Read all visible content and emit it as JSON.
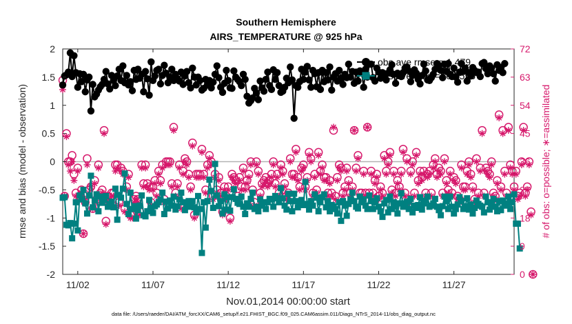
{
  "chart_data": {
    "type": "line",
    "title": "Southern Hemisphere",
    "subtitle": "AIRS_TEMPERATURE @ 925 hPa",
    "xlabel": "Nov.01,2014 00:00:00 start",
    "ylabel": "rmse and bias (model - observation)",
    "ylabel_right": "# of obs: o=possible; ∗=assimilated",
    "footer": "data file: /Users/raeder/DAI/ATM_forcXX/CAM6_setup/f.e21.FHIST_BGC.f09_025.CAM6assim.011/Diags_NTrS_2014-11/obs_diag_output.nc",
    "x_ticks": [
      "11/02",
      "11/07",
      "11/12",
      "11/17",
      "11/22",
      "11/27"
    ],
    "x_tick_days": [
      2,
      7,
      12,
      17,
      22,
      27
    ],
    "xlim_days": [
      1.0,
      31.0
    ],
    "ylim": [
      -2,
      2
    ],
    "y_ticks": [
      -2,
      -1.5,
      -1,
      -0.5,
      0,
      0.5,
      1,
      1.5,
      2
    ],
    "ylim_right": [
      0,
      72
    ],
    "y_ticks_right": [
      0,
      9,
      18,
      27,
      36,
      45,
      54,
      63,
      72
    ],
    "grid": false,
    "zero_line": true,
    "legend_position": "top-right",
    "legend": [
      {
        "label": "obs ave rmse = 1.479"
      },
      {
        "label": "obs ave bias = -0.7556"
      }
    ],
    "colors": {
      "rmse": "#000000",
      "bias": "#008080",
      "counts": "#d6186b",
      "zero": "#b3b3b3"
    },
    "step_days": 0.125,
    "series": [
      {
        "name": "rmse",
        "axis": "left",
        "values": [
          1.36,
          1.52,
          1.54,
          1.59,
          1.93,
          1.51,
          1.88,
          1.58,
          1.32,
          1.56,
          1.42,
          1.55,
          1.24,
          1.45,
          1.5,
          0.9,
          1.37,
          1.15,
          1.2,
          1.27,
          1.33,
          1.37,
          1.46,
          1.6,
          1.38,
          1.29,
          1.53,
          1.44,
          1.35,
          1.52,
          1.64,
          1.44,
          1.7,
          1.4,
          1.53,
          1.36,
          1.42,
          1.26,
          1.62,
          1.46,
          1.64,
          1.48,
          1.55,
          1.24,
          1.6,
          1.47,
          1.18,
          1.77,
          1.44,
          1.52,
          1.62,
          1.64,
          1.38,
          1.53,
          1.71,
          1.57,
          1.4,
          1.5,
          1.64,
          1.44,
          1.55,
          1.47,
          1.43,
          1.59,
          1.37,
          1.52,
          1.6,
          1.4,
          1.31,
          1.66,
          1.5,
          1.36,
          1.5,
          1.44,
          1.27,
          1.3,
          1.46,
          1.36,
          1.44,
          1.31,
          1.41,
          1.55,
          1.7,
          1.49,
          1.32,
          1.23,
          1.39,
          1.62,
          1.44,
          1.31,
          1.3,
          1.61,
          1.5,
          1.46,
          1.42,
          1.35,
          1.55,
          1.46,
          1.16,
          1.04,
          1.08,
          1.13,
          1.3,
          1.22,
          1.1,
          1.43,
          1.31,
          1.25,
          1.46,
          1.59,
          1.35,
          1.28,
          1.63,
          1.46,
          1.58,
          1.35,
          1.23,
          1.25,
          1.32,
          1.48,
          1.4,
          1.68,
          1.45,
          0.77,
          1.35,
          1.32,
          1.42,
          1.64,
          1.46,
          1.59,
          1.69,
          1.45,
          1.32,
          1.62,
          1.56,
          1.33,
          1.58,
          1.28,
          1.62,
          1.42,
          1.58,
          1.45,
          1.68,
          1.27,
          1.5,
          1.56,
          1.43,
          1.62,
          1.48,
          1.37,
          1.55,
          1.49,
          1.73,
          1.5,
          1.6,
          1.39,
          1.59,
          1.43,
          1.61,
          1.57,
          1.32,
          1.64,
          1.5,
          1.73,
          1.73,
          1.49,
          1.43,
          1.66,
          1.59,
          1.48,
          1.58,
          1.56,
          1.45,
          1.57,
          1.63,
          1.72,
          1.55,
          1.39,
          1.57,
          1.53,
          1.51,
          1.58,
          1.66,
          1.68,
          1.61,
          1.42,
          1.53,
          1.63,
          1.57,
          1.46,
          1.38,
          1.53,
          1.73,
          1.61,
          1.45,
          1.44,
          1.49,
          1.55,
          1.64,
          1.74,
          1.71,
          1.62,
          1.49,
          1.73,
          1.6,
          1.74,
          1.55,
          1.51,
          1.66,
          1.5,
          1.41,
          1.59,
          1.74,
          1.6,
          1.66,
          1.43,
          1.58,
          1.52,
          1.67,
          1.62,
          1.58,
          1.59,
          1.51,
          1.74,
          1.76,
          1.65,
          1.56,
          1.7,
          1.66,
          1.56,
          1.43,
          1.72,
          1.62,
          1.67,
          1.58,
          1.74
        ]
      },
      {
        "name": "bias",
        "axis": "left",
        "values": [
          -0.64,
          -0.63,
          -1.12,
          -1.13,
          -1.09,
          -1.36,
          -1.1,
          -0.72,
          -1.22,
          -0.6,
          -0.67,
          -0.5,
          -0.74,
          -0.92,
          -0.6,
          -0.25,
          -0.81,
          -0.69,
          -0.58,
          -0.88,
          -0.62,
          -0.73,
          -0.68,
          -0.61,
          -0.8,
          -0.75,
          -0.71,
          -0.81,
          -0.48,
          -1.03,
          -0.59,
          -0.64,
          -0.48,
          -0.21,
          -0.75,
          -0.93,
          -0.55,
          -0.84,
          -0.79,
          -1.01,
          -0.86,
          -0.78,
          -0.6,
          -0.95,
          -0.97,
          -0.88,
          -0.68,
          -0.82,
          -0.91,
          -0.79,
          -0.76,
          -0.72,
          -0.67,
          -0.55,
          -0.93,
          -0.71,
          -0.83,
          -0.69,
          -0.78,
          -0.62,
          -0.85,
          -0.79,
          -0.67,
          -0.55,
          -0.72,
          -0.86,
          -0.76,
          -0.7,
          -0.8,
          -0.7,
          -0.81,
          -0.9,
          -0.61,
          -0.84,
          -1.62,
          -0.72,
          -1.17,
          -0.7,
          -0.32,
          -0.52,
          -0.82,
          -0.04,
          -0.6,
          -0.79,
          -0.7,
          -0.92,
          -0.58,
          -0.85,
          -0.63,
          -0.87,
          -0.63,
          -0.49,
          -0.66,
          -0.73,
          -0.75,
          -0.62,
          -0.8,
          -0.93,
          -0.74,
          -0.8,
          -0.66,
          -0.55,
          -0.84,
          -0.8,
          -0.88,
          -0.67,
          -0.78,
          -0.72,
          -0.84,
          -0.72,
          -0.66,
          -0.67,
          -0.8,
          -0.61,
          -0.65,
          -0.72,
          -0.47,
          -0.65,
          -0.78,
          -0.85,
          -0.57,
          -0.7,
          -0.88,
          -0.57,
          -0.7,
          -0.81,
          -0.71,
          -0.68,
          -0.77,
          -0.36,
          -0.75,
          -0.85,
          -0.7,
          -0.78,
          -0.58,
          -0.64,
          -0.88,
          -0.72,
          -0.63,
          -0.58,
          -0.81,
          -0.7,
          -0.88,
          -0.77,
          -0.79,
          -0.84,
          -0.92,
          -0.72,
          -1.05,
          -0.7,
          -0.78,
          -0.96,
          -0.75,
          -0.67,
          -0.55,
          -0.7,
          -0.8,
          -0.83,
          -0.62,
          -0.72,
          -0.67,
          -0.78,
          -0.84,
          -0.6,
          -0.7,
          -0.84,
          -0.72,
          -0.65,
          -0.8,
          -0.88,
          -0.98,
          -0.74,
          -0.68,
          -0.9,
          -0.62,
          -0.84,
          -0.72,
          -0.8,
          -0.92,
          -0.74,
          -0.56,
          -0.8,
          -0.74,
          -0.71,
          -0.84,
          -0.66,
          -0.9,
          -0.78,
          -0.82,
          -0.77,
          -0.63,
          -0.85,
          -0.74,
          -0.69,
          -0.62,
          -0.8,
          -0.78,
          -0.74,
          -0.66,
          -0.8,
          -0.86,
          -0.95,
          -0.79,
          -0.62,
          -0.7,
          -0.84,
          -0.62,
          -0.8,
          -0.92,
          -0.84,
          -0.76,
          -0.63,
          -0.7,
          -0.84,
          -0.79,
          -0.65,
          -0.85,
          -0.76,
          -0.92,
          -0.82,
          -0.69,
          -0.75,
          -0.78,
          -0.8,
          -0.9,
          -0.62,
          -0.72,
          -0.85,
          -0.76,
          -0.66,
          -0.8,
          -0.88,
          -0.7,
          -0.86,
          -0.69,
          -0.78,
          -0.74,
          -0.62,
          -0.84,
          -0.72,
          -0.58,
          -1.1,
          -1.1,
          -1.54
        ]
      },
      {
        "name": "possible",
        "axis": "right",
        "values": [
          62,
          25,
          45,
          36,
          36,
          38,
          32,
          26,
          34,
          25,
          27,
          13,
          23,
          37,
          27,
          28,
          21,
          30,
          24,
          35,
          26,
          27,
          46,
          17,
          25,
          23,
          26,
          26,
          35,
          35,
          23,
          34,
          33,
          21,
          28,
          32,
          19,
          19,
          24,
          25,
          24,
          20,
          35,
          29,
          35,
          29,
          28,
          23,
          28,
          30,
          26,
          33,
          30,
          35,
          24,
          36,
          36,
          36,
          29,
          47,
          26,
          29,
          35,
          22,
          33,
          37,
          36,
          32,
          28,
          42,
          19,
          32,
          32,
          32,
          40,
          32,
          27,
          35,
          38,
          36,
          25,
          32,
          27,
          31,
          26,
          20,
          28,
          25,
          28,
          18,
          32,
          31,
          30,
          25,
          31,
          28,
          34,
          28,
          30,
          32,
          36,
          27,
          23,
          36,
          33,
          26,
          29,
          30,
          31,
          29,
          30,
          32,
          36,
          29,
          32,
          26,
          35,
          33,
          29,
          25,
          26,
          37,
          32,
          32,
          40,
          31,
          28,
          34,
          35,
          28,
          31,
          39,
          37,
          26,
          32,
          27,
          39,
          33,
          35,
          31,
          31,
          26,
          30,
          26,
          46,
          25,
          31,
          35,
          34,
          26,
          28,
          34,
          30,
          26,
          28,
          46,
          34,
          38,
          26,
          26,
          33,
          26,
          47,
          26,
          33,
          26,
          30,
          32,
          25,
          28,
          26,
          38,
          33,
          36,
          39,
          27,
          33,
          26,
          30,
          28,
          33,
          40,
          26,
          37,
          24,
          33,
          36,
          26,
          39,
          30,
          33,
          31,
          33,
          26,
          32,
          33,
          26,
          35,
          37,
          32,
          34,
          33,
          26,
          37,
          30,
          27,
          33,
          26,
          31,
          30,
          25,
          24,
          35,
          28,
          28,
          33,
          36,
          32,
          28,
          24,
          37,
          26,
          34,
          46,
          26,
          34,
          33,
          32,
          36,
          26,
          25,
          30,
          51,
          28,
          46,
          33,
          26,
          47,
          35,
          33,
          28,
          33,
          25,
          26,
          36,
          47,
          26,
          28,
          36,
          20,
          0
        ]
      },
      {
        "name": "assimilated",
        "axis": "right",
        "values": [
          59,
          25,
          44,
          35,
          33,
          36,
          30,
          25,
          33,
          25,
          26,
          13,
          24,
          35,
          26,
          28,
          21,
          29,
          23,
          34,
          25,
          26,
          45,
          16,
          24,
          22,
          25,
          25,
          33,
          34,
          22,
          33,
          32,
          20,
          27,
          31,
          18,
          18,
          23,
          24,
          23,
          19,
          34,
          28,
          34,
          28,
          27,
          22,
          27,
          29,
          25,
          32,
          29,
          34,
          23,
          35,
          35,
          35,
          28,
          46,
          25,
          28,
          34,
          21,
          32,
          36,
          35,
          31,
          27,
          41,
          18,
          31,
          31,
          31,
          39,
          31,
          26,
          34,
          37,
          35,
          24,
          31,
          26,
          30,
          25,
          19,
          27,
          24,
          27,
          17,
          31,
          30,
          29,
          24,
          30,
          27,
          33,
          27,
          29,
          31,
          35,
          26,
          22,
          35,
          32,
          25,
          28,
          29,
          30,
          28,
          29,
          31,
          35,
          28,
          31,
          25,
          34,
          32,
          28,
          24,
          25,
          36,
          31,
          31,
          39,
          30,
          27,
          33,
          34,
          27,
          30,
          38,
          36,
          25,
          31,
          26,
          38,
          32,
          34,
          30,
          30,
          25,
          29,
          25,
          47,
          24,
          30,
          34,
          33,
          25,
          27,
          33,
          29,
          25,
          27,
          46,
          33,
          37,
          25,
          25,
          32,
          25,
          47,
          25,
          32,
          25,
          29,
          31,
          24,
          27,
          25,
          37,
          32,
          35,
          38,
          26,
          32,
          25,
          29,
          27,
          32,
          39,
          25,
          36,
          23,
          32,
          35,
          25,
          38,
          29,
          32,
          30,
          32,
          25,
          31,
          32,
          25,
          34,
          36,
          31,
          33,
          32,
          25,
          36,
          29,
          26,
          32,
          25,
          30,
          29,
          24,
          23,
          34,
          27,
          27,
          32,
          35,
          31,
          27,
          23,
          36,
          25,
          33,
          45,
          25,
          33,
          32,
          31,
          35,
          25,
          24,
          29,
          50,
          27,
          45,
          32,
          25,
          46,
          34,
          32,
          27,
          32,
          24,
          25,
          35,
          46,
          25,
          27,
          35,
          19,
          0
        ]
      }
    ]
  }
}
